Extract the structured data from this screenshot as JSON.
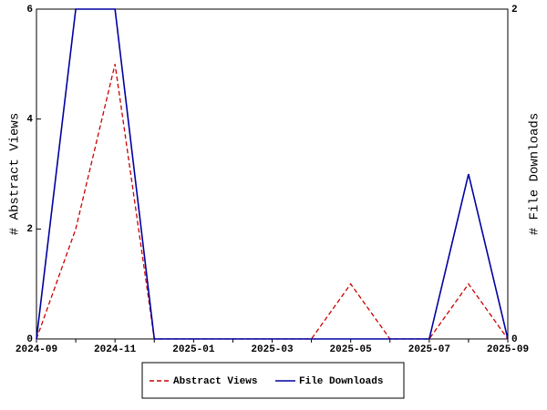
{
  "chart_data": {
    "type": "line",
    "categories": [
      "2024-09",
      null,
      "2024-11",
      null,
      "2025-01",
      null,
      "2025-03",
      null,
      "2025-05",
      null,
      "2025-07",
      null,
      "2025-09"
    ],
    "y_label": "# Abstract Views",
    "y2_label": "# File Downloads",
    "ylim": [
      0,
      6
    ],
    "yticks": [
      0,
      2,
      4,
      6
    ],
    "y2lim": [
      0,
      2
    ],
    "y2ticks": [
      0,
      2
    ],
    "series": [
      {
        "name": "Abstract Views",
        "color": "#cc0000",
        "dashed": true,
        "values": [
          0,
          2,
          5,
          0,
          0,
          0,
          0,
          0,
          1,
          0,
          0,
          1,
          0
        ]
      },
      {
        "name": "File Downloads",
        "color": "#0000a0",
        "dashed": false,
        "axis": "y2",
        "values": [
          0,
          2,
          2,
          0,
          0,
          0,
          0,
          0,
          0,
          0,
          0,
          1,
          0
        ]
      }
    ]
  }
}
